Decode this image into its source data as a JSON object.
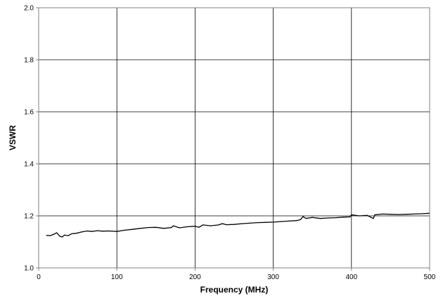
{
  "chart_data": {
    "type": "line",
    "title": "",
    "xlabel": "Frequency (MHz)",
    "ylabel": "VSWR",
    "xlim": [
      0,
      500
    ],
    "ylim": [
      1.0,
      2.0
    ],
    "x_ticks": [
      0,
      100,
      200,
      300,
      400,
      500
    ],
    "x_tick_labels": [
      "0",
      "100",
      "200",
      "300",
      "400",
      "500"
    ],
    "y_ticks": [
      1.0,
      1.2,
      1.4,
      1.6,
      1.8,
      2.0
    ],
    "y_tick_labels": [
      "1.0",
      "1.2",
      "1.4",
      "1.6",
      "1.8",
      "2.0"
    ],
    "grid": true,
    "legend": "none",
    "colors": {
      "series": "#000000",
      "grid": "#000000",
      "axes": "#808080",
      "background": "#ffffff"
    },
    "series": [
      {
        "x": [
          10,
          15,
          20,
          23,
          27,
          30,
          33,
          38,
          42,
          48,
          55,
          62,
          68,
          75,
          82,
          90,
          100,
          110,
          120,
          130,
          140,
          150,
          160,
          170,
          172,
          180,
          190,
          200,
          205,
          210,
          220,
          230,
          235,
          240,
          250,
          260,
          270,
          280,
          290,
          300,
          310,
          320,
          330,
          335,
          338,
          342,
          350,
          360,
          370,
          380,
          390,
          398,
          400,
          410,
          420,
          428,
          430,
          440,
          450,
          460,
          470,
          480,
          490,
          500
        ],
        "y": [
          1.125,
          1.124,
          1.13,
          1.135,
          1.122,
          1.119,
          1.126,
          1.124,
          1.131,
          1.133,
          1.138,
          1.142,
          1.14,
          1.143,
          1.141,
          1.142,
          1.14,
          1.145,
          1.148,
          1.152,
          1.155,
          1.156,
          1.152,
          1.155,
          1.162,
          1.154,
          1.158,
          1.16,
          1.156,
          1.165,
          1.162,
          1.165,
          1.17,
          1.166,
          1.167,
          1.17,
          1.172,
          1.174,
          1.175,
          1.176,
          1.178,
          1.18,
          1.182,
          1.186,
          1.197,
          1.19,
          1.194,
          1.19,
          1.192,
          1.193,
          1.195,
          1.196,
          1.204,
          1.2,
          1.202,
          1.19,
          1.204,
          1.207,
          1.206,
          1.205,
          1.206,
          1.207,
          1.208,
          1.21
        ]
      }
    ]
  }
}
